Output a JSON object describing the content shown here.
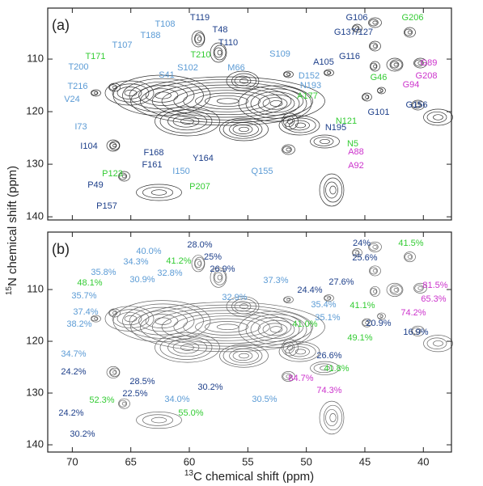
{
  "x_label": {
    "sup": "13",
    "text": "C chemical shift  (ppm)"
  },
  "y_label": {
    "sup": "15",
    "text": "N chemical shift  (ppm)"
  },
  "chart_data": [
    {
      "type": "contour",
      "panel": "(a)",
      "xlim": [
        72.1,
        37.6
      ],
      "xticks": [
        70,
        65,
        60,
        55,
        50,
        45,
        40
      ],
      "ylim": [
        100.3,
        140.6
      ],
      "yticks": [
        110,
        120,
        130,
        140
      ],
      "annotations": [
        {
          "text": "T119",
          "color": "#1d3f8a"
        },
        {
          "text": "T108",
          "color": "#5b9bd5"
        },
        {
          "text": "G106",
          "color": "#1d3f8a"
        },
        {
          "text": "G206",
          "color": "#33cc33"
        },
        {
          "text": "T48",
          "color": "#1d3f8a"
        },
        {
          "text": "T188",
          "color": "#5b9bd5"
        },
        {
          "text": "T107",
          "color": "#5b9bd5"
        },
        {
          "text": "T110",
          "color": "#1d3f8a"
        },
        {
          "text": "G137/127",
          "color": "#1d3f8a"
        },
        {
          "text": "T171",
          "color": "#33cc33"
        },
        {
          "text": "T210",
          "color": "#33cc33"
        },
        {
          "text": "S102",
          "color": "#5b9bd5"
        },
        {
          "text": "M66",
          "color": "#5b9bd5"
        },
        {
          "text": "S109",
          "color": "#5b9bd5"
        },
        {
          "text": "T200",
          "color": "#5b9bd5"
        },
        {
          "text": "S41",
          "color": "#5b9bd5"
        },
        {
          "text": "A105",
          "color": "#1d3f8a"
        },
        {
          "text": "G116",
          "color": "#1d3f8a"
        },
        {
          "text": "G89",
          "color": "#cc33cc"
        },
        {
          "text": "G208",
          "color": "#cc33cc"
        },
        {
          "text": "D152",
          "color": "#5b9bd5"
        },
        {
          "text": "N193",
          "color": "#5b9bd5"
        },
        {
          "text": "T216",
          "color": "#5b9bd5"
        },
        {
          "text": "G46",
          "color": "#33cc33"
        },
        {
          "text": "G94",
          "color": "#cc33cc"
        },
        {
          "text": "V24",
          "color": "#5b9bd5"
        },
        {
          "text": "A177",
          "color": "#33cc33"
        },
        {
          "text": "G101",
          "color": "#1d3f8a"
        },
        {
          "text": "G156",
          "color": "#1d3f8a"
        },
        {
          "text": "N121",
          "color": "#33cc33"
        },
        {
          "text": "I73",
          "color": "#5b9bd5"
        },
        {
          "text": "N195",
          "color": "#1d3f8a"
        },
        {
          "text": "I104",
          "color": "#1d3f8a"
        },
        {
          "text": "F168",
          "color": "#1d3f8a"
        },
        {
          "text": "N5",
          "color": "#33cc33"
        },
        {
          "text": "A88",
          "color": "#cc33cc"
        },
        {
          "text": "F161",
          "color": "#1d3f8a"
        },
        {
          "text": "Y164",
          "color": "#1d3f8a"
        },
        {
          "text": "A92",
          "color": "#cc33cc"
        },
        {
          "text": "I150",
          "color": "#5b9bd5"
        },
        {
          "text": "Q155",
          "color": "#5b9bd5"
        },
        {
          "text": "P123",
          "color": "#33cc33"
        },
        {
          "text": "P49",
          "color": "#1d3f8a"
        },
        {
          "text": "P207",
          "color": "#33cc33"
        },
        {
          "text": "P157",
          "color": "#1d3f8a"
        }
      ]
    },
    {
      "type": "contour",
      "panel": "(b)",
      "xlim": [
        72.1,
        37.6
      ],
      "xticks": [
        70,
        65,
        60,
        55,
        50,
        45,
        40
      ],
      "ylim": [
        98.9,
        141.4
      ],
      "yticks": [
        110,
        120,
        130,
        140
      ],
      "annotations": [
        {
          "text": "28.0%",
          "color": "#1d3f8a"
        },
        {
          "text": "24%",
          "color": "#1d3f8a"
        },
        {
          "text": "41.5%",
          "color": "#33cc33"
        },
        {
          "text": "40.0%",
          "color": "#5b9bd5"
        },
        {
          "text": "25%",
          "color": "#1d3f8a"
        },
        {
          "text": "34.3%",
          "color": "#5b9bd5"
        },
        {
          "text": "35.8%",
          "color": "#5b9bd5"
        },
        {
          "text": "26.9%",
          "color": "#1d3f8a"
        },
        {
          "text": "41.2%",
          "color": "#33cc33"
        },
        {
          "text": "25.6%",
          "color": "#1d3f8a"
        },
        {
          "text": "48.1%",
          "color": "#33cc33"
        },
        {
          "text": "32.8%",
          "color": "#5b9bd5"
        },
        {
          "text": "30.9%",
          "color": "#5b9bd5"
        },
        {
          "text": "37.3%",
          "color": "#5b9bd5"
        },
        {
          "text": "27.6%",
          "color": "#1d3f8a"
        },
        {
          "text": "35.7%",
          "color": "#5b9bd5"
        },
        {
          "text": "32.9%",
          "color": "#5b9bd5"
        },
        {
          "text": "24.4%",
          "color": "#1d3f8a"
        },
        {
          "text": "35.4%",
          "color": "#5b9bd5"
        },
        {
          "text": "81.5%",
          "color": "#cc33cc"
        },
        {
          "text": "65.3%",
          "color": "#cc33cc"
        },
        {
          "text": "41.1%",
          "color": "#33cc33"
        },
        {
          "text": "74.2%",
          "color": "#cc33cc"
        },
        {
          "text": "37.4%",
          "color": "#5b9bd5"
        },
        {
          "text": "35.1%",
          "color": "#5b9bd5"
        },
        {
          "text": "38.2%",
          "color": "#5b9bd5"
        },
        {
          "text": "41.0%",
          "color": "#33cc33"
        },
        {
          "text": "16.9%",
          "color": "#1d3f8a"
        },
        {
          "text": "20.9%",
          "color": "#1d3f8a"
        },
        {
          "text": "49.1%",
          "color": "#33cc33"
        },
        {
          "text": "34.7%",
          "color": "#5b9bd5"
        },
        {
          "text": "26.6%",
          "color": "#1d3f8a"
        },
        {
          "text": "24.2%",
          "color": "#1d3f8a"
        },
        {
          "text": "41.8%",
          "color": "#33cc33"
        },
        {
          "text": "28.5%",
          "color": "#1d3f8a"
        },
        {
          "text": "22.5%",
          "color": "#1d3f8a"
        },
        {
          "text": "30.2%",
          "color": "#1d3f8a"
        },
        {
          "text": "84.7%",
          "color": "#cc33cc"
        },
        {
          "text": "74.3%",
          "color": "#cc33cc"
        },
        {
          "text": "34.0%",
          "color": "#5b9bd5"
        },
        {
          "text": "30.5%",
          "color": "#5b9bd5"
        },
        {
          "text": "52.3%",
          "color": "#33cc33"
        },
        {
          "text": "55.0%",
          "color": "#33cc33"
        },
        {
          "text": "24.2%",
          "color": "#1d3f8a"
        },
        {
          "text": "30.2%",
          "color": "#1d3f8a"
        }
      ]
    }
  ]
}
